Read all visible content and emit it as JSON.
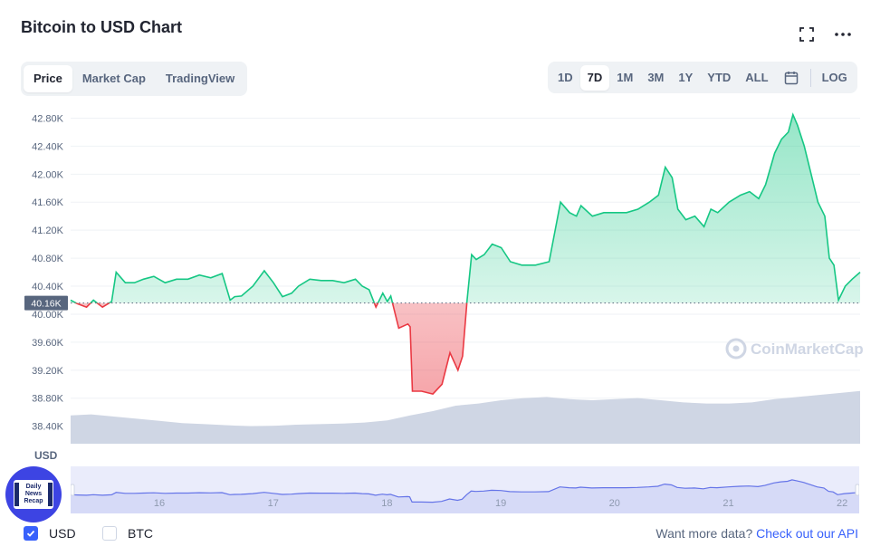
{
  "header": {
    "title": "Bitcoin to USD Chart"
  },
  "icons": {
    "fullscreen": "fullscreen-icon",
    "more": "more-icon",
    "calendar": "calendar-icon"
  },
  "tabs": [
    {
      "label": "Price",
      "active": true
    },
    {
      "label": "Market Cap",
      "active": false
    },
    {
      "label": "TradingView",
      "active": false
    }
  ],
  "ranges": [
    {
      "label": "1D",
      "active": false
    },
    {
      "label": "7D",
      "active": true
    },
    {
      "label": "1M",
      "active": false
    },
    {
      "label": "3M",
      "active": false
    },
    {
      "label": "1Y",
      "active": false
    },
    {
      "label": "YTD",
      "active": false
    },
    {
      "label": "ALL",
      "active": false
    }
  ],
  "log_label": "LOG",
  "axis_currency_label": "USD",
  "badge": {
    "line1": "Daily",
    "line2": "News",
    "line3": "Recap"
  },
  "legend": {
    "usd": {
      "label": "USD",
      "checked": true
    },
    "btc": {
      "label": "BTC",
      "checked": false
    }
  },
  "footer": {
    "prompt": "Want more data?",
    "link": "Check out our API"
  },
  "watermark": "CoinMarketCap",
  "colors": {
    "up": "#16c784",
    "down": "#ea3943",
    "volume": "#cfd6e4",
    "nav_line": "#6574e8",
    "nav_fill": "#eaecfb",
    "accent": "#3861fb"
  },
  "chart_data": {
    "type": "line",
    "x_unit": "day",
    "y_ticks": [
      "42.80K",
      "42.40K",
      "42.00K",
      "41.60K",
      "41.20K",
      "40.80K",
      "40.40K",
      "40.00K",
      "39.60K",
      "39.20K",
      "38.80K",
      "38.40K"
    ],
    "y_tick_values": [
      42800,
      42400,
      42000,
      41600,
      41200,
      40800,
      40400,
      40000,
      39600,
      39200,
      38800,
      38400
    ],
    "ylim": [
      38150,
      43000
    ],
    "xlim": [
      15.22,
      22.15
    ],
    "x_ticks": [
      "16",
      "17",
      "18",
      "19",
      "20",
      "21",
      "22"
    ],
    "x_tick_values": [
      16,
      17,
      18,
      19,
      20,
      21,
      22
    ],
    "reference_value": 40160,
    "reference_label": "40.16K",
    "series": [
      {
        "x": [
          15.22,
          15.28,
          15.36,
          15.42,
          15.5,
          15.58,
          15.62,
          15.7,
          15.78,
          15.86,
          15.95,
          16.05,
          16.15,
          16.25,
          16.35,
          16.45,
          16.55,
          16.62,
          16.66,
          16.72,
          16.82,
          16.92,
          17.0,
          17.08,
          17.16,
          17.22,
          17.32,
          17.42,
          17.52,
          17.62,
          17.72,
          17.78,
          17.84,
          17.9,
          17.96,
          18.0,
          18.03,
          18.1,
          18.18,
          18.2,
          18.22,
          18.3,
          18.4,
          18.48,
          18.55,
          18.62,
          18.66,
          18.7,
          18.74,
          18.78,
          18.85,
          18.92,
          19.0,
          19.08,
          19.18,
          19.3,
          19.42,
          19.52,
          19.6,
          19.66,
          19.7,
          19.8,
          19.9,
          20.0,
          20.1,
          20.2,
          20.3,
          20.38,
          20.44,
          20.5,
          20.55,
          20.62,
          20.7,
          20.78,
          20.84,
          20.9,
          21.0,
          21.1,
          21.18,
          21.26,
          21.32,
          21.4,
          21.46,
          21.52,
          21.56,
          21.6,
          21.66,
          21.72,
          21.78,
          21.84,
          21.88,
          21.92,
          21.96,
          22.02,
          22.08,
          22.15
        ],
        "y": [
          40200,
          40150,
          40100,
          40200,
          40100,
          40180,
          40600,
          40450,
          40450,
          40500,
          40540,
          40450,
          40500,
          40500,
          40560,
          40520,
          40580,
          40200,
          40250,
          40260,
          40400,
          40620,
          40450,
          40250,
          40300,
          40400,
          40500,
          40480,
          40480,
          40450,
          40500,
          40400,
          40350,
          40100,
          40300,
          40180,
          40260,
          39800,
          39860,
          39820,
          38900,
          38900,
          38860,
          39000,
          39450,
          39200,
          39400,
          40200,
          40850,
          40780,
          40850,
          41000,
          40950,
          40750,
          40700,
          40700,
          40750,
          41600,
          41450,
          41400,
          41550,
          41400,
          41450,
          41450,
          41450,
          41500,
          41600,
          41700,
          42100,
          41950,
          41500,
          41350,
          41400,
          41250,
          41500,
          41450,
          41600,
          41700,
          41750,
          41650,
          41850,
          42300,
          42500,
          42600,
          42850,
          42700,
          42400,
          42000,
          41600,
          41400,
          40800,
          40700,
          40200,
          40400,
          40500,
          40600
        ]
      }
    ],
    "volume": {
      "x": [
        15.22,
        15.4,
        15.6,
        15.8,
        16.0,
        16.2,
        16.4,
        16.6,
        16.8,
        17.0,
        17.2,
        17.4,
        17.6,
        17.8,
        18.0,
        18.2,
        18.4,
        18.6,
        18.8,
        19.0,
        19.2,
        19.4,
        19.6,
        19.8,
        20.0,
        20.2,
        20.4,
        20.6,
        20.8,
        21.0,
        21.2,
        21.4,
        21.6,
        21.8,
        22.0,
        22.15
      ],
      "y_relative": [
        0.52,
        0.54,
        0.5,
        0.46,
        0.42,
        0.38,
        0.36,
        0.34,
        0.32,
        0.33,
        0.35,
        0.36,
        0.37,
        0.39,
        0.43,
        0.52,
        0.6,
        0.7,
        0.74,
        0.8,
        0.84,
        0.86,
        0.82,
        0.8,
        0.82,
        0.84,
        0.8,
        0.76,
        0.74,
        0.74,
        0.76,
        0.82,
        0.86,
        0.9,
        0.94,
        0.97
      ]
    },
    "navigator": {
      "x_ticks": [
        "16",
        "17",
        "18",
        "19",
        "20",
        "21",
        "22"
      ],
      "x_tick_values": [
        16,
        17,
        18,
        19,
        20,
        21,
        22
      ]
    }
  }
}
